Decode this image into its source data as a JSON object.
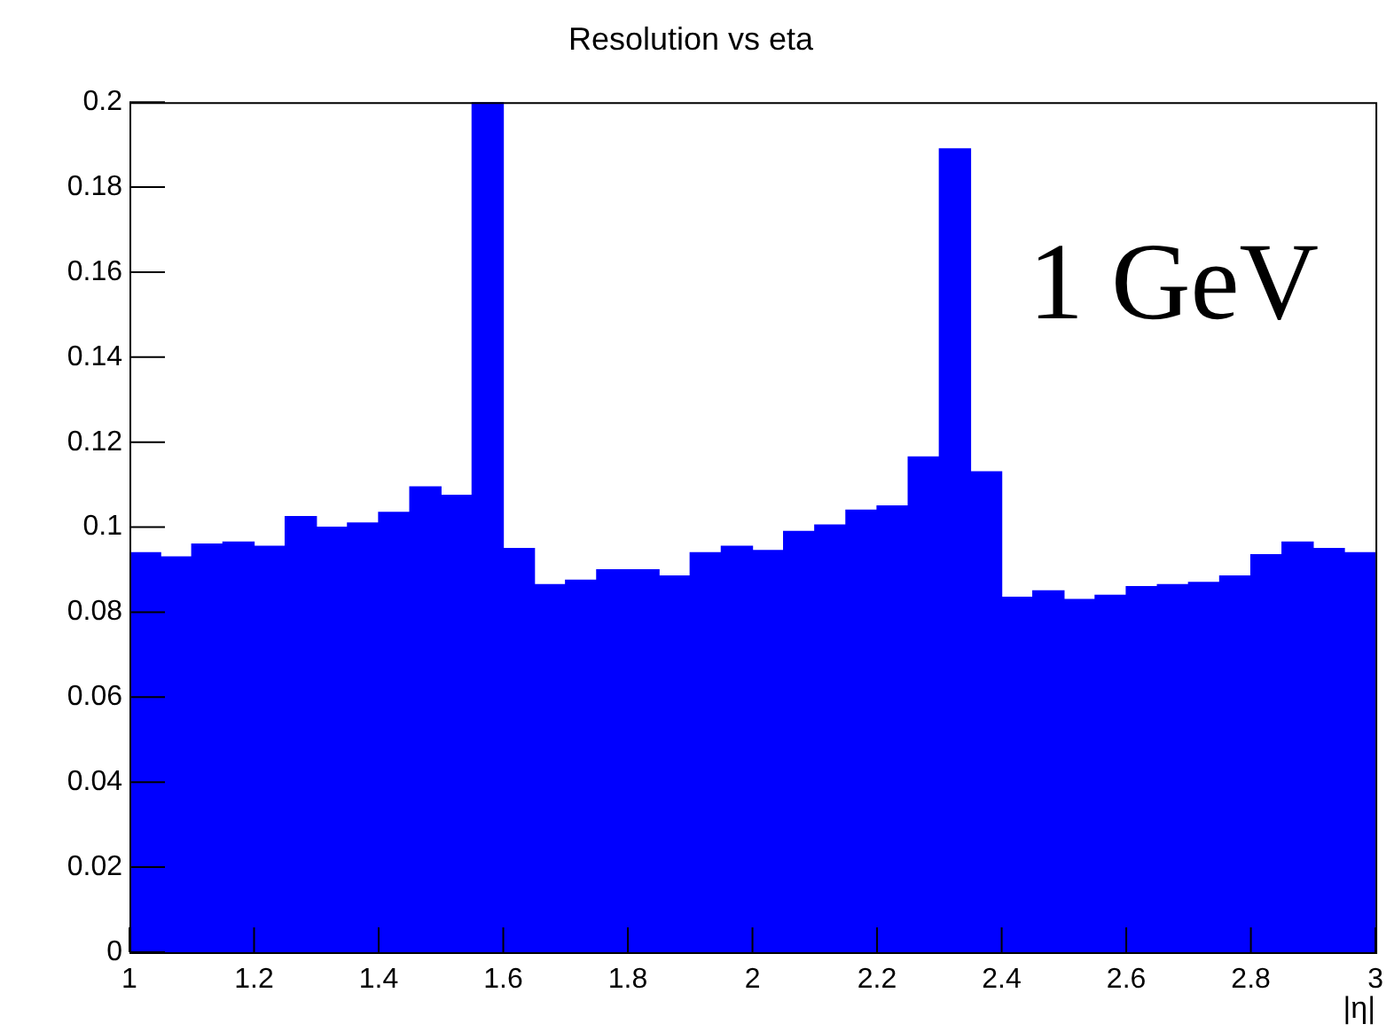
{
  "chart_data": {
    "type": "histogram",
    "title": "Resolution vs eta",
    "xlabel": "|η|",
    "annotations": [
      "1 GeV"
    ],
    "bins": [
      1,
      1.05,
      1.1,
      1.15,
      1.2,
      1.25,
      1.3,
      1.35,
      1.4,
      1.45,
      1.5,
      1.55,
      1.6,
      1.65,
      1.7,
      1.75,
      1.8,
      1.85,
      1.9,
      1.95,
      2,
      2.05,
      2.1,
      2.15,
      2.2,
      2.25,
      2.3,
      2.35,
      2.4,
      2.45,
      2.5,
      2.55,
      2.6,
      2.65,
      2.7,
      2.75,
      2.8,
      2.85,
      2.9,
      2.95,
      3
    ],
    "values": [
      0.094,
      0.093,
      0.096,
      0.0965,
      0.0955,
      0.1025,
      0.1,
      0.101,
      0.1035,
      0.1095,
      0.1075,
      0.2,
      0.095,
      0.0865,
      0.0875,
      0.09,
      0.09,
      0.0885,
      0.094,
      0.0955,
      0.0945,
      0.099,
      0.1005,
      0.104,
      0.105,
      0.1165,
      0.189,
      0.113,
      0.0835,
      0.085,
      0.083,
      0.084,
      0.086,
      0.0865,
      0.087,
      0.0885,
      0.0935,
      0.0965,
      0.095,
      0.094
    ],
    "color": "#0000ff",
    "xlim": [
      1,
      3
    ],
    "xticks": [
      1,
      1.2,
      1.4,
      1.6,
      1.8,
      2,
      2.2,
      2.4,
      2.6,
      2.8,
      3
    ],
    "ylim": [
      0,
      0.2
    ],
    "yticks": [
      0,
      0.02,
      0.04,
      0.06,
      0.08,
      0.1,
      0.12,
      0.14,
      0.16,
      0.18,
      0.2
    ],
    "grid": false
  }
}
